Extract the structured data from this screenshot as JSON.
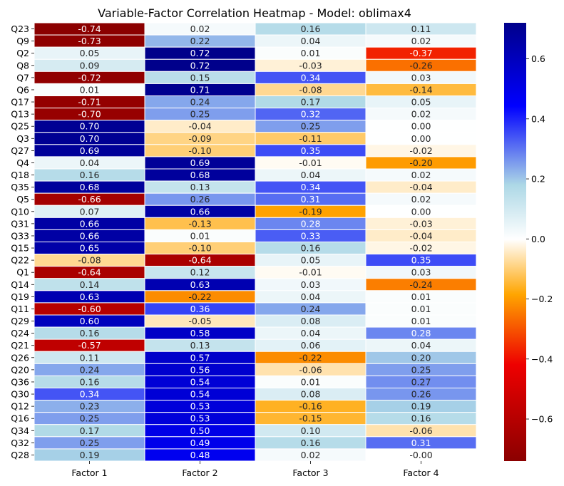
{
  "chart_data": {
    "type": "heatmap",
    "title": "Variable-Factor Correlation Heatmap - Model: oblimax4",
    "columns": [
      "Factor 1",
      "Factor 2",
      "Factor 3",
      "Factor 4"
    ],
    "rows": [
      "Q23",
      "Q9",
      "Q2",
      "Q8",
      "Q7",
      "Q6",
      "Q17",
      "Q13",
      "Q25",
      "Q3",
      "Q27",
      "Q4",
      "Q18",
      "Q35",
      "Q5",
      "Q10",
      "Q31",
      "Q33",
      "Q15",
      "Q22",
      "Q1",
      "Q14",
      "Q19",
      "Q11",
      "Q29",
      "Q24",
      "Q21",
      "Q26",
      "Q20",
      "Q36",
      "Q30",
      "Q12",
      "Q16",
      "Q34",
      "Q32",
      "Q28"
    ],
    "values": [
      [
        -0.74,
        0.02,
        0.16,
        0.11
      ],
      [
        -0.73,
        0.22,
        0.04,
        0.02
      ],
      [
        0.05,
        0.72,
        0.01,
        -0.37
      ],
      [
        0.09,
        0.72,
        -0.03,
        -0.26
      ],
      [
        -0.72,
        0.15,
        0.34,
        0.03
      ],
      [
        0.01,
        0.71,
        -0.08,
        -0.14
      ],
      [
        -0.71,
        0.24,
        0.17,
        0.05
      ],
      [
        -0.7,
        0.25,
        0.32,
        0.02
      ],
      [
        0.7,
        -0.04,
        0.25,
        0.0
      ],
      [
        0.7,
        -0.09,
        -0.11,
        0.0
      ],
      [
        0.69,
        -0.1,
        0.35,
        -0.02
      ],
      [
        0.04,
        0.69,
        -0.01,
        -0.2
      ],
      [
        0.16,
        0.68,
        0.04,
        0.02
      ],
      [
        0.68,
        0.13,
        0.34,
        -0.04
      ],
      [
        -0.66,
        0.26,
        0.31,
        0.02
      ],
      [
        0.07,
        0.66,
        -0.19,
        0.0
      ],
      [
        0.66,
        -0.13,
        0.28,
        -0.03
      ],
      [
        0.66,
        0.01,
        0.33,
        -0.04
      ],
      [
        0.65,
        -0.1,
        0.16,
        -0.02
      ],
      [
        -0.08,
        -0.64,
        0.05,
        0.35
      ],
      [
        -0.64,
        0.12,
        -0.01,
        0.03
      ],
      [
        0.14,
        0.63,
        0.03,
        -0.24
      ],
      [
        0.63,
        -0.22,
        0.04,
        0.01
      ],
      [
        -0.6,
        0.36,
        0.24,
        0.01
      ],
      [
        0.6,
        -0.05,
        0.08,
        0.01
      ],
      [
        0.16,
        0.58,
        0.04,
        0.28
      ],
      [
        -0.57,
        0.13,
        0.06,
        0.04
      ],
      [
        0.11,
        0.57,
        -0.22,
        0.2
      ],
      [
        0.24,
        0.56,
        -0.06,
        0.25
      ],
      [
        0.16,
        0.54,
        0.01,
        0.27
      ],
      [
        0.34,
        0.54,
        0.08,
        0.26
      ],
      [
        0.23,
        0.53,
        -0.16,
        0.19
      ],
      [
        0.25,
        0.53,
        -0.15,
        0.16
      ],
      [
        0.17,
        0.5,
        0.1,
        -0.06
      ],
      [
        0.25,
        0.49,
        0.16,
        0.31
      ],
      [
        0.19,
        0.48,
        0.02,
        -0.001
      ]
    ],
    "value_format": "2 decimals",
    "colorbar": {
      "min": -0.74,
      "max": 0.72,
      "ticks": [
        0.6,
        0.4,
        0.2,
        0.0,
        -0.2,
        -0.4,
        -0.6
      ],
      "colormap": "diverging: dark red - red - orange - white - light blue - blue - navy"
    },
    "xlabel": "",
    "ylabel": "",
    "grid": false
  }
}
